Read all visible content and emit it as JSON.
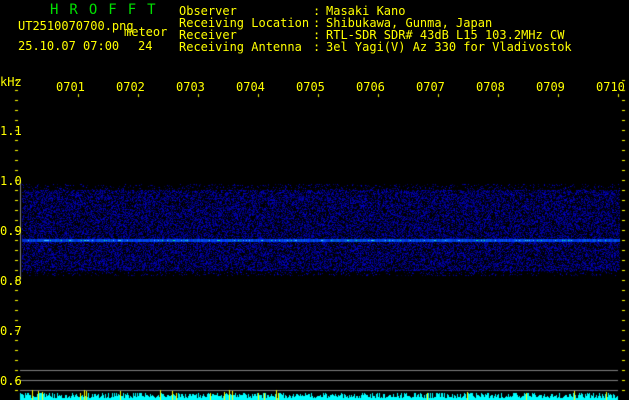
{
  "header": {
    "app_title": "HROFFT",
    "filename": "UT2510070700.png",
    "mode": "meteor",
    "datetime": "25.10.07 07:00",
    "count": "24",
    "fields": [
      {
        "label": "Observer",
        "value": "Masaki Kano"
      },
      {
        "label": "Receiving Location",
        "value": "Shibukawa, Gunma, Japan"
      },
      {
        "label": "Receiver",
        "value": "RTL-SDR SDR# 43dB L15 103.2MHz CW"
      },
      {
        "label": "Receiving Antenna",
        "value": "3el Yagi(V) Az 330 for Vladivostok"
      }
    ]
  },
  "axis": {
    "unit": "kHz",
    "y_ticks": [
      "1.1",
      "1.0",
      "0.9",
      "0.8",
      "0.7",
      "0.6"
    ],
    "time_ticks": [
      "0701",
      "0702",
      "0703",
      "0704",
      "0705",
      "0706",
      "0707",
      "0708",
      "0709",
      "0710"
    ]
  },
  "spectrogram": {
    "noise_band_khz": [
      0.82,
      0.98
    ],
    "carrier_khz": 0.88,
    "colors": {
      "noise": "#0000c0",
      "carrier": "#40a0ff",
      "peak": "#00ff80",
      "level": "#00ffff",
      "spike": "#ffff00",
      "grid": "#808080",
      "text": "#ffff00",
      "title": "#00e000"
    }
  }
}
